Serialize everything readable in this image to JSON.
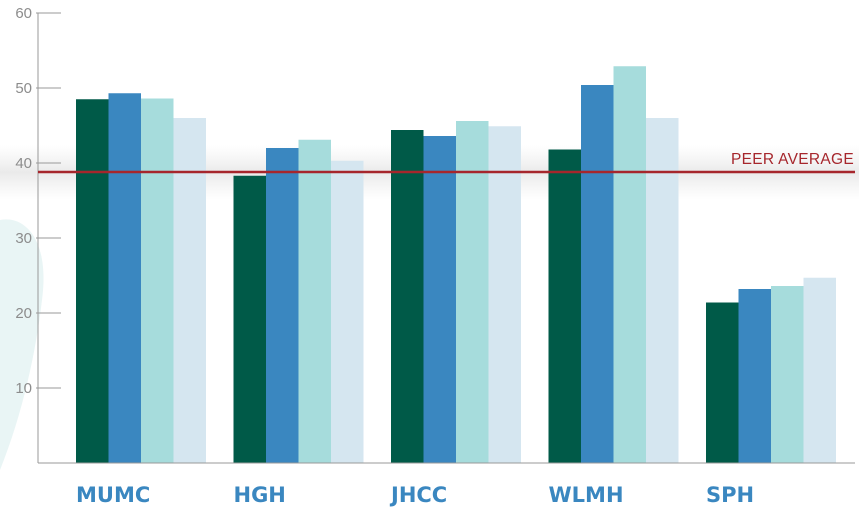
{
  "chart_data": {
    "type": "bar",
    "categories": [
      "MUMC",
      "HGH",
      "JHCC",
      "WLMH",
      "SPH"
    ],
    "series": [
      {
        "color": "#005a48",
        "values": [
          48.5,
          38.3,
          44.4,
          41.8,
          21.4
        ]
      },
      {
        "color": "#3a87c0",
        "values": [
          49.3,
          42.0,
          43.6,
          50.4,
          23.2
        ]
      },
      {
        "color": "#a6dcdc",
        "values": [
          48.6,
          43.1,
          45.6,
          52.9,
          23.6
        ]
      },
      {
        "color": "#d5e6f0",
        "values": [
          46.0,
          40.3,
          44.9,
          46.0,
          24.7
        ]
      }
    ],
    "yticks": [
      10,
      20,
      30,
      40,
      50,
      60
    ],
    "ylim": [
      0,
      60
    ],
    "reference_line": {
      "label": "PEER AVERAGE",
      "value": 38.8,
      "color": "#a6262c"
    },
    "grid": false,
    "legend": "none"
  }
}
